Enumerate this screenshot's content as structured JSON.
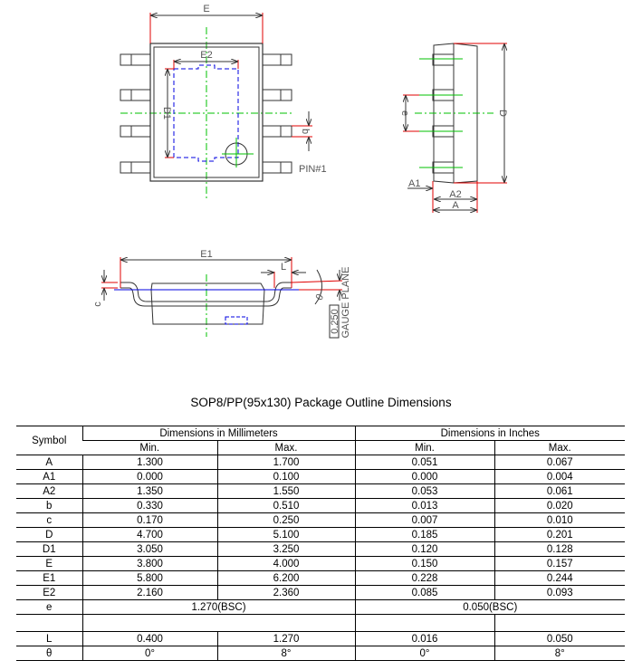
{
  "drawing": {
    "top_view": {
      "label_E": "E",
      "label_E2": "E2",
      "label_D1": "D1",
      "label_b": "b",
      "pin1": "PIN#1"
    },
    "side_view": {
      "label_e": "e",
      "label_D": "D",
      "label_A1": "A1",
      "label_A2": "A2",
      "label_A": "A"
    },
    "front_view": {
      "label_E1": "E1",
      "label_L": "L",
      "label_c": "c",
      "label_theta": "θ",
      "gauge_value": "0.250",
      "gauge_text": "GAUGE PLANE"
    },
    "colors": {
      "dimension": "#e00000",
      "centerline": "#00c000",
      "pad": "#0000e0",
      "outline": "#333333"
    }
  },
  "title": "SOP8/PP(95x130) Package Outline Dimensions",
  "table": {
    "symbol_header": "Symbol",
    "mm_header": "Dimensions in Millimeters",
    "in_header": "Dimensions in Inches",
    "min": "Min.",
    "max": "Max.",
    "rows": [
      {
        "symbol": "A",
        "mm_min": "1.300",
        "mm_max": "1.700",
        "in_min": "0.051",
        "in_max": "0.067"
      },
      {
        "symbol": "A1",
        "mm_min": "0.000",
        "mm_max": "0.100",
        "in_min": "0.000",
        "in_max": "0.004"
      },
      {
        "symbol": "A2",
        "mm_min": "1.350",
        "mm_max": "1.550",
        "in_min": "0.053",
        "in_max": "0.061"
      },
      {
        "symbol": "b",
        "mm_min": "0.330",
        "mm_max": "0.510",
        "in_min": "0.013",
        "in_max": "0.020"
      },
      {
        "symbol": "c",
        "mm_min": "0.170",
        "mm_max": "0.250",
        "in_min": "0.007",
        "in_max": "0.010"
      },
      {
        "symbol": "D",
        "mm_min": "4.700",
        "mm_max": "5.100",
        "in_min": "0.185",
        "in_max": "0.201"
      },
      {
        "symbol": "D1",
        "mm_min": "3.050",
        "mm_max": "3.250",
        "in_min": "0.120",
        "in_max": "0.128"
      },
      {
        "symbol": "E",
        "mm_min": "3.800",
        "mm_max": "4.000",
        "in_min": "0.150",
        "in_max": "0.157"
      },
      {
        "symbol": "E1",
        "mm_min": "5.800",
        "mm_max": "6.200",
        "in_min": "0.228",
        "in_max": "0.244"
      },
      {
        "symbol": "E2",
        "mm_min": "2.160",
        "mm_max": "2.360",
        "in_min": "0.085",
        "in_max": "0.093"
      }
    ],
    "e_row": {
      "symbol": "e",
      "mm": "1.270(BSC)",
      "in": "0.050(BSC)"
    },
    "tail_rows": [
      {
        "symbol": "L",
        "mm_min": "0.400",
        "mm_max": "1.270",
        "in_min": "0.016",
        "in_max": "0.050"
      },
      {
        "symbol": "θ",
        "mm_min": "0°",
        "mm_max": "8°",
        "in_min": "0°",
        "in_max": "8°"
      }
    ]
  }
}
